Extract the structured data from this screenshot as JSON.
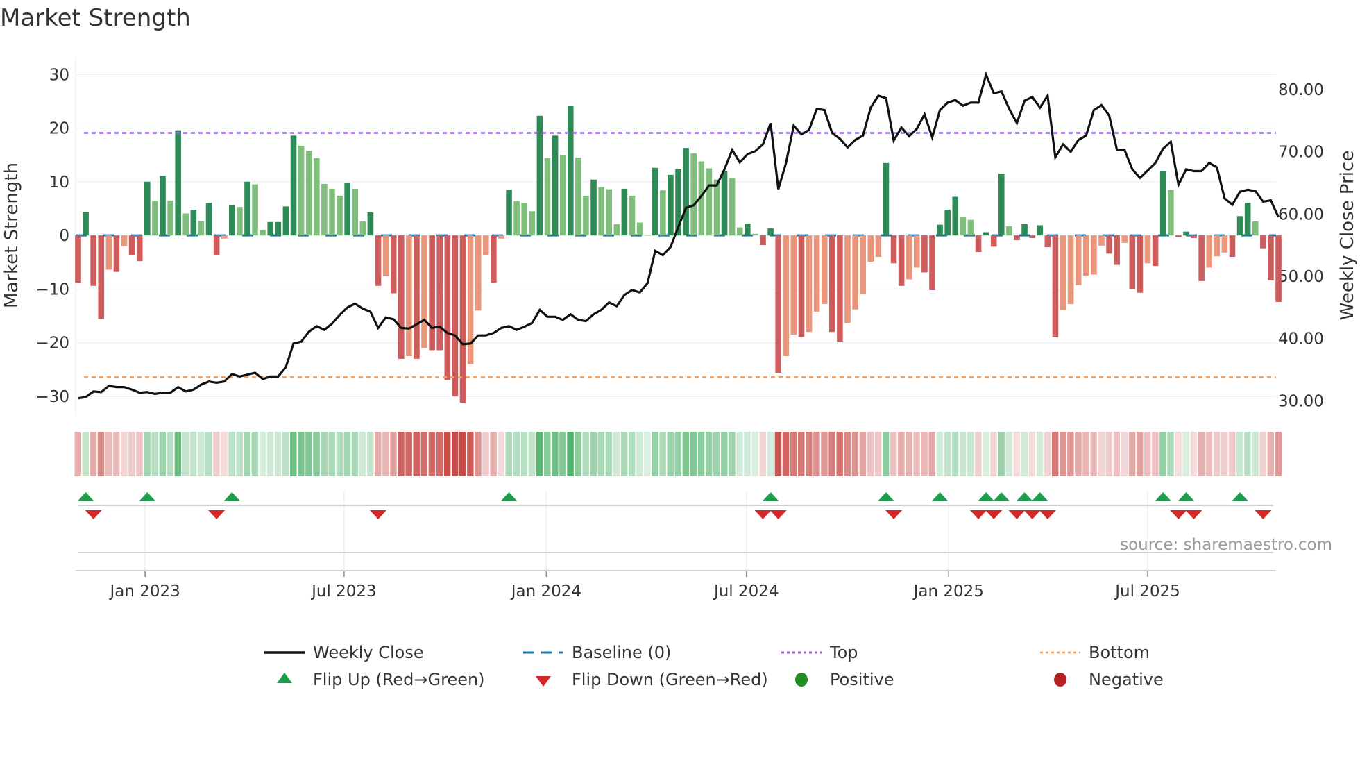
{
  "title": "Market Strength",
  "source": "source: sharemaestro.com",
  "colors": {
    "pos_dark": "#2e8b57",
    "pos_light": "#7fbf7b",
    "neg_dark": "#cd5c5c",
    "neg_light": "#e9967a",
    "price": "#111111",
    "baseline": "#1f77b4",
    "top": "#9b5de5",
    "bottom": "#f4a261",
    "flip_up": "#1a9e4a",
    "flip_down": "#d62728",
    "positive": "#228b22",
    "negative": "#b22222"
  },
  "legend": [
    {
      "key": "weekly_close",
      "label": "Weekly Close"
    },
    {
      "key": "baseline",
      "label": "Baseline (0)"
    },
    {
      "key": "top",
      "label": "Top"
    },
    {
      "key": "bottom",
      "label": "Bottom"
    },
    {
      "key": "flip_up",
      "label": "Flip Up (Red→Green)"
    },
    {
      "key": "flip_down",
      "label": "Flip Down (Green→Red)"
    },
    {
      "key": "positive",
      "label": "Positive"
    },
    {
      "key": "negative",
      "label": "Negative"
    }
  ],
  "chart_data": {
    "type": "bar",
    "title": "Market Strength",
    "ylabel": "Market Strength",
    "y2label": "Weekly Close Price",
    "ylim": [
      -33.5,
      33.4
    ],
    "y2lim": [
      27.7,
      85.35
    ],
    "yticks": [
      30,
      20,
      10,
      0,
      -10,
      -20,
      -30
    ],
    "yticklabels": [
      "30",
      "20",
      "10",
      "0",
      "−10",
      "−20",
      "−30"
    ],
    "y2ticks": [
      80,
      70,
      60,
      50,
      40,
      30
    ],
    "y2ticklabels": [
      "80.00",
      "70.00",
      "60.00",
      "50.00",
      "40.00",
      "30.00"
    ],
    "x_start": "2022-11-01",
    "x_step_days": 7,
    "xticks": [
      {
        "label": "Jan 2023",
        "date": "2023-01-01"
      },
      {
        "label": "Jul 2023",
        "date": "2023-07-01"
      },
      {
        "label": "Jan 2024",
        "date": "2024-01-01"
      },
      {
        "label": "Jul 2024",
        "date": "2024-07-01"
      },
      {
        "label": "Jan 2025",
        "date": "2025-01-01"
      },
      {
        "label": "Jul 2025",
        "date": "2025-07-01"
      }
    ],
    "top_level": 19.1,
    "bottom_level": -26.4,
    "baseline": 0,
    "strength": [
      -8.8,
      4.3,
      -9.4,
      -15.6,
      -6.4,
      -6.8,
      -2,
      -3.7,
      -4.8,
      10,
      6.4,
      11.1,
      6.5,
      19.6,
      4.1,
      4.8,
      2.7,
      6.1,
      -3.7,
      -0.6,
      5.7,
      5.3,
      10,
      9.5,
      1,
      2.5,
      2.5,
      5.4,
      18.6,
      16.7,
      15.8,
      14.4,
      9.6,
      8.7,
      7.4,
      9.8,
      8.7,
      2.6,
      4.3,
      -9.4,
      -7.5,
      -10.8,
      -23,
      -22.5,
      -23,
      -21,
      -21.4,
      -21.4,
      -27,
      -30,
      -31.2,
      -24,
      -14,
      -3.6,
      -8.8,
      -0.6,
      8.5,
      6.4,
      6.1,
      4.5,
      22.3,
      14.5,
      18.6,
      15,
      24.2,
      14.5,
      7.4,
      10.4,
      9,
      8.6,
      2.1,
      8.7,
      7.4,
      2.4,
      0.1,
      12.6,
      8.4,
      11.3,
      12.4,
      16.3,
      15.3,
      13.8,
      12.5,
      10.4,
      12,
      10.7,
      1.5,
      2.2,
      0.3,
      -1.8,
      1.3,
      -25.6,
      -22.5,
      -18.5,
      -19,
      -18,
      -14.2,
      -12.8,
      -18,
      -19.8,
      -16.3,
      -13.8,
      -11,
      -4.9,
      -4,
      13.5,
      -5.2,
      -9.4,
      -8.2,
      -6,
      -6.9,
      -10.2,
      2,
      4.8,
      7.2,
      3.5,
      2.9,
      -3.1,
      0.6,
      -2.1,
      11.5,
      1.7,
      -0.9,
      2.1,
      -0.5,
      1.9,
      -2.2,
      -19,
      -13.9,
      -12.8,
      -9.3,
      -7.5,
      -7.3,
      -1.9,
      -3.4,
      -5.5,
      -1.4,
      -10,
      -10.7,
      -5.2,
      -5.7,
      12,
      8.5,
      -0.3,
      0.7,
      -0.5,
      -8.5,
      -6,
      -3.9,
      -3.2,
      -4,
      3.6,
      6.1,
      2.6,
      -2.4,
      -8.4,
      -12.4
    ],
    "weekly_close": [
      30.4,
      30.6,
      31.5,
      31.4,
      32.4,
      32.2,
      32.2,
      31.8,
      31.3,
      31.4,
      31.1,
      31.3,
      31.3,
      32.2,
      31.5,
      31.8,
      32.6,
      33.1,
      32.9,
      33.1,
      34.3,
      33.9,
      34.2,
      34.5,
      33.5,
      33.9,
      33.9,
      35.4,
      39.2,
      39.5,
      41.1,
      42.0,
      41.4,
      42.4,
      43.8,
      45.0,
      45.6,
      44.8,
      44.3,
      41.7,
      43.4,
      43.1,
      41.7,
      41.6,
      42.3,
      43.0,
      41.7,
      41.9,
      40.9,
      40.5,
      39.1,
      39.2,
      40.5,
      40.5,
      40.9,
      41.7,
      42.0,
      41.4,
      41.9,
      42.5,
      44.6,
      43.5,
      43.5,
      43.0,
      43.9,
      43.0,
      42.8,
      43.9,
      44.6,
      45.8,
      45.2,
      47.0,
      47.8,
      47.4,
      48.9,
      54.1,
      53.4,
      54.7,
      57.9,
      61.0,
      61.4,
      62.9,
      64.6,
      64.6,
      67.2,
      70.3,
      68.3,
      69.6,
      70.1,
      71.2,
      74.6,
      64.0,
      68.2,
      74.2,
      72.8,
      73.5,
      76.9,
      76.7,
      73.0,
      72.1,
      70.7,
      71.9,
      72.6,
      77.1,
      79.0,
      78.6,
      71.8,
      73.9,
      72.5,
      73.7,
      76.0,
      72.3,
      76.7,
      77.9,
      78.3,
      77.4,
      77.9,
      77.9,
      82.4,
      79.4,
      79.7,
      76.9,
      74.6,
      78.2,
      78.8,
      77.1,
      79.0,
      69.1,
      71.2,
      70.0,
      71.9,
      72.6,
      76.7,
      77.5,
      75.8,
      70.3,
      70.3,
      67.2,
      65.8,
      67.0,
      68.2,
      70.5,
      71.6,
      64.7,
      67.2,
      66.9,
      66.9,
      68.2,
      67.5,
      62.5,
      61.5,
      63.6,
      63.9,
      63.7,
      62.0,
      62.2,
      59.5
    ]
  }
}
